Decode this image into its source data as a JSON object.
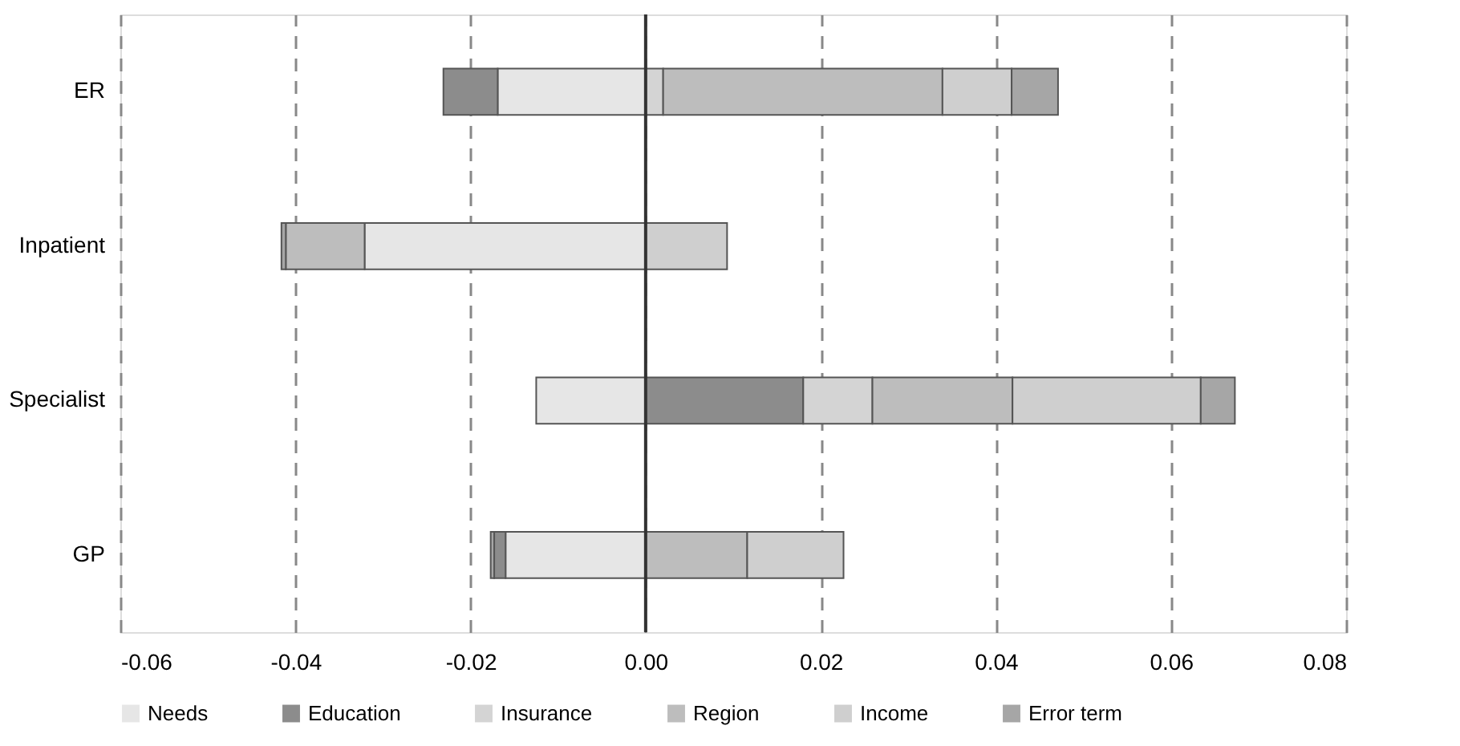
{
  "chart_data": {
    "type": "bar",
    "orientation": "horizontal",
    "stacked": true,
    "categories": [
      "ER",
      "Inpatient",
      "Specialist",
      "GP"
    ],
    "series": [
      {
        "name": "Needs",
        "color": "#e6e6e6",
        "values": [
          -0.0169,
          -0.0321,
          -0.0125,
          -0.016
        ]
      },
      {
        "name": "Education",
        "color": "#8c8c8c",
        "values": [
          -0.0062,
          null,
          0.018,
          -0.0013
        ]
      },
      {
        "name": "Insurance",
        "color": "#d4d4d4",
        "values": [
          0.002,
          null,
          0.0079,
          null
        ]
      },
      {
        "name": "Region",
        "color": "#bdbdbd",
        "values": [
          0.0319,
          -0.009,
          0.016,
          0.0116
        ]
      },
      {
        "name": "Income",
        "color": "#cfcfcf",
        "values": [
          0.0079,
          0.0093,
          0.0215,
          0.011
        ]
      },
      {
        "name": "Error term",
        "color": "#a6a6a6",
        "values": [
          0.0053,
          -0.0005,
          0.0039,
          -0.0004
        ]
      }
    ],
    "xlim": [
      -0.06,
      0.08
    ],
    "xticks": [
      {
        "value": -0.06,
        "label": "-0.06"
      },
      {
        "value": -0.04,
        "label": "-0.04"
      },
      {
        "value": -0.02,
        "label": "-0.02"
      },
      {
        "value": 0,
        "label": "0.00"
      },
      {
        "value": 0.02,
        "label": "0.02"
      },
      {
        "value": 0.04,
        "label": "0.04"
      },
      {
        "value": 0.06,
        "label": "0.06"
      },
      {
        "value": 0.08,
        "label": "0.08"
      }
    ],
    "ref_lines": [
      {
        "axis": "x",
        "value": 0,
        "color": "#333333"
      }
    ],
    "grid": "x",
    "legend": "bottom"
  }
}
